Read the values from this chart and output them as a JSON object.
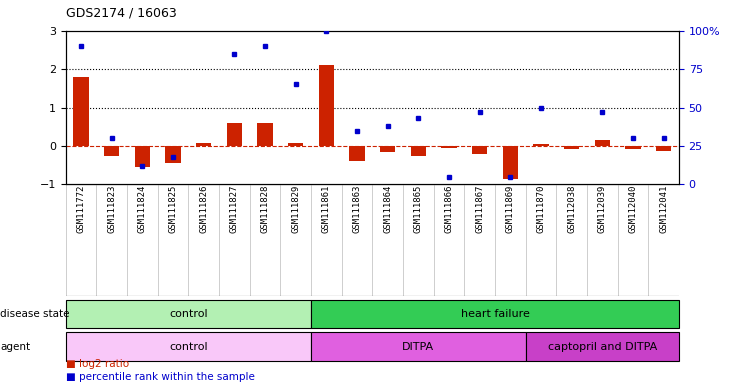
{
  "title": "GDS2174 / 16063",
  "samples": [
    "GSM111772",
    "GSM111823",
    "GSM111824",
    "GSM111825",
    "GSM111826",
    "GSM111827",
    "GSM111828",
    "GSM111829",
    "GSM111861",
    "GSM111863",
    "GSM111864",
    "GSM111865",
    "GSM111866",
    "GSM111867",
    "GSM111869",
    "GSM111870",
    "GSM112038",
    "GSM112039",
    "GSM112040",
    "GSM112041"
  ],
  "log2_ratio": [
    1.8,
    -0.25,
    -0.55,
    -0.45,
    0.07,
    0.6,
    0.6,
    0.07,
    2.1,
    -0.4,
    -0.15,
    -0.25,
    -0.05,
    -0.2,
    -0.85,
    0.05,
    -0.07,
    0.15,
    -0.07,
    -0.12
  ],
  "percentile": [
    90,
    30,
    12,
    18,
    null,
    85,
    90,
    65,
    100,
    35,
    38,
    43,
    5,
    47,
    5,
    50,
    null,
    47,
    30,
    30
  ],
  "disease_state_groups": [
    {
      "label": "control",
      "start": 0,
      "end": 8,
      "color": "#b3f0b3"
    },
    {
      "label": "heart failure",
      "start": 8,
      "end": 20,
      "color": "#33cc55"
    }
  ],
  "agent_groups": [
    {
      "label": "control",
      "start": 0,
      "end": 8,
      "color": "#f9c8f9"
    },
    {
      "label": "DITPA",
      "start": 8,
      "end": 15,
      "color": "#e060e0"
    },
    {
      "label": "captopril and DITPA",
      "start": 15,
      "end": 20,
      "color": "#c840c8"
    }
  ],
  "bar_color": "#cc2200",
  "dot_color": "#0000cc",
  "ylim_left": [
    -1,
    3
  ],
  "ylim_right": [
    0,
    100
  ],
  "dotted_hlines": [
    1,
    2
  ]
}
